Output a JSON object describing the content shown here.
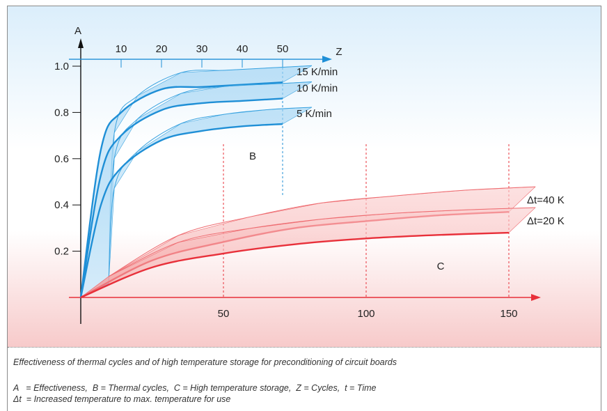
{
  "chart_data": {
    "type": "line",
    "y_axis": {
      "label": "A",
      "ticks": [
        "0.2",
        "0.4",
        "0.6",
        "0.8",
        "1.0"
      ],
      "range": [
        0,
        1.08
      ]
    },
    "top_axis": {
      "label": "Z",
      "ticks": [
        "10",
        "20",
        "30",
        "40",
        "50"
      ]
    },
    "bottom_axis": {
      "label": "",
      "ticks": [
        "50",
        "100",
        "150"
      ],
      "range": [
        0,
        160
      ]
    },
    "region_labels": [
      "B",
      "C"
    ],
    "groups": [
      {
        "name": "B",
        "color": "#1f8fd6",
        "axis": "Z",
        "x_range": [
          0,
          50
        ],
        "series": [
          {
            "name": "15 K/min",
            "x": [
              0,
              5,
              10,
              20,
              30,
              40,
              50
            ],
            "y": [
              0,
              0.64,
              0.8,
              0.9,
              0.91,
              0.92,
              0.93
            ]
          },
          {
            "name": "10 K/min",
            "x": [
              0,
              5,
              10,
              20,
              30,
              40,
              50
            ],
            "y": [
              0,
              0.53,
              0.7,
              0.81,
              0.84,
              0.85,
              0.86
            ]
          },
          {
            "name": "5 K/min",
            "x": [
              0,
              5,
              10,
              20,
              30,
              40,
              50
            ],
            "y": [
              0,
              0.4,
              0.56,
              0.68,
              0.72,
              0.74,
              0.75
            ]
          }
        ]
      },
      {
        "name": "C",
        "color": "#e8303a",
        "axis": "t",
        "x_range": [
          0,
          150
        ],
        "series": [
          {
            "name": "Δt=40 K",
            "x": [
              0,
              25,
              50,
              75,
              100,
              125,
              150
            ],
            "y": [
              0,
              0.16,
              0.24,
              0.3,
              0.33,
              0.355,
              0.37
            ]
          },
          {
            "name": "Δt=20 K",
            "x": [
              0,
              25,
              50,
              75,
              100,
              125,
              150
            ],
            "y": [
              0,
              0.13,
              0.19,
              0.23,
              0.255,
              0.27,
              0.28
            ]
          }
        ]
      }
    ]
  },
  "caption": {
    "title": "Effectiveness of thermal cycles and of high temperature storage for preconditioning of circuit boards",
    "legend_line1": "A   = Effectiveness,  B = Thermal cycles,  C = High temperature storage,  Z = Cycles,  t = Time",
    "legend_line2": "Δt  = Increased temperature to max. temperature for use"
  }
}
